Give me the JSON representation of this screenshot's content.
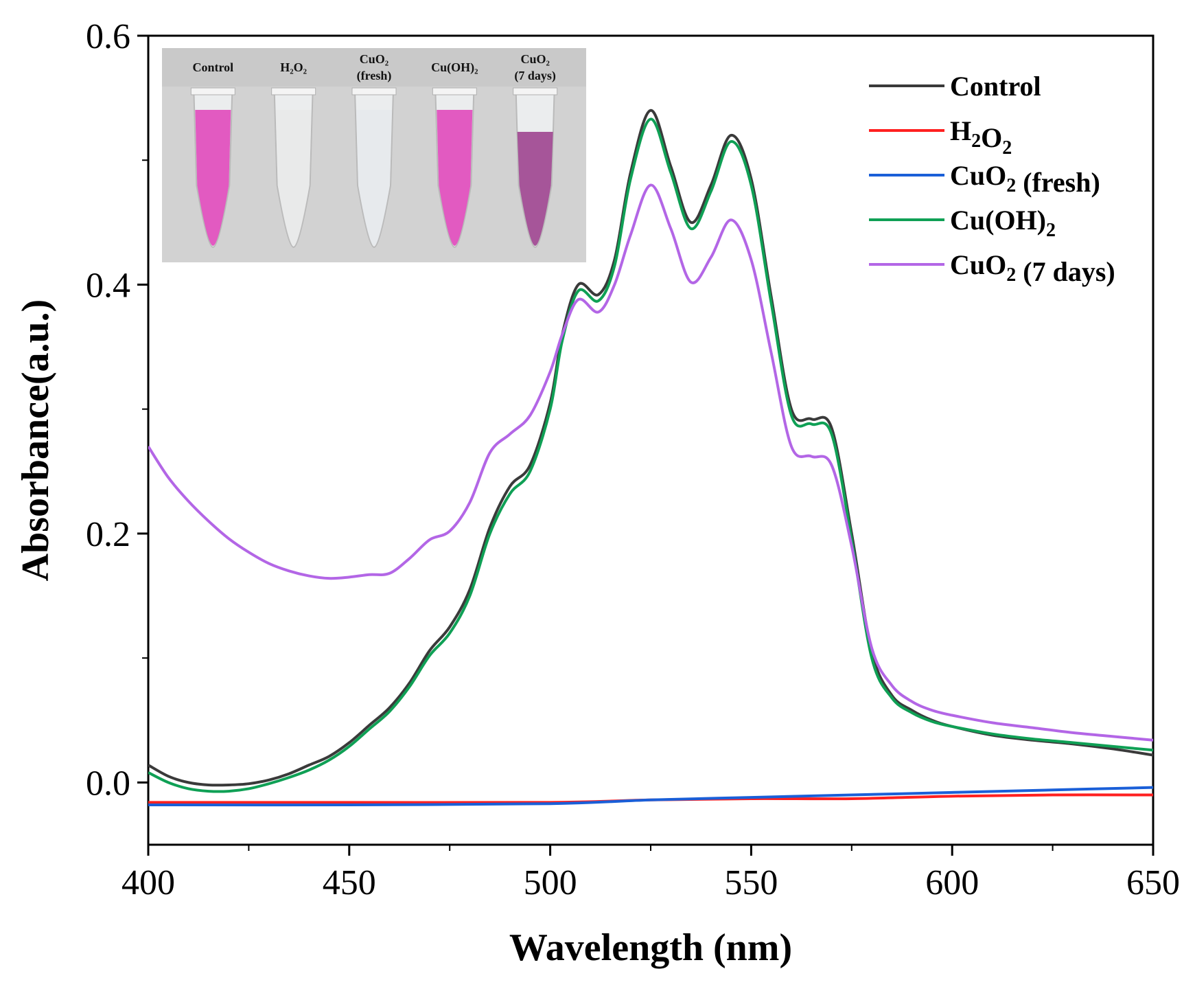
{
  "chart_data": {
    "type": "line",
    "xlabel": "Wavelength (nm)",
    "ylabel": "Absorbance(a.u.)",
    "xlim": [
      400,
      650
    ],
    "ylim": [
      -0.05,
      0.6
    ],
    "x_ticks": [
      "400",
      "450",
      "500",
      "550",
      "600",
      "650"
    ],
    "y_ticks": [
      "0.0",
      "0.2",
      "0.4",
      "0.6"
    ],
    "legend_position": "top-right",
    "series": [
      {
        "name": "Control",
        "color": "#3a3a3a",
        "points": [
          [
            400,
            0.014
          ],
          [
            405,
            0.005
          ],
          [
            410,
            0.0
          ],
          [
            415,
            -0.002
          ],
          [
            420,
            -0.002
          ],
          [
            425,
            -0.001
          ],
          [
            430,
            0.002
          ],
          [
            435,
            0.007
          ],
          [
            440,
            0.014
          ],
          [
            445,
            0.021
          ],
          [
            450,
            0.032
          ],
          [
            455,
            0.046
          ],
          [
            460,
            0.06
          ],
          [
            465,
            0.08
          ],
          [
            470,
            0.106
          ],
          [
            475,
            0.125
          ],
          [
            480,
            0.155
          ],
          [
            485,
            0.205
          ],
          [
            490,
            0.238
          ],
          [
            495,
            0.255
          ],
          [
            500,
            0.305
          ],
          [
            503,
            0.36
          ],
          [
            507,
            0.4
          ],
          [
            512,
            0.392
          ],
          [
            516,
            0.42
          ],
          [
            520,
            0.49
          ],
          [
            525,
            0.54
          ],
          [
            530,
            0.495
          ],
          [
            535,
            0.45
          ],
          [
            540,
            0.48
          ],
          [
            545,
            0.52
          ],
          [
            550,
            0.485
          ],
          [
            555,
            0.39
          ],
          [
            560,
            0.3
          ],
          [
            565,
            0.292
          ],
          [
            570,
            0.285
          ],
          [
            575,
            0.2
          ],
          [
            580,
            0.105
          ],
          [
            585,
            0.07
          ],
          [
            590,
            0.058
          ],
          [
            595,
            0.05
          ],
          [
            600,
            0.045
          ],
          [
            610,
            0.038
          ],
          [
            620,
            0.034
          ],
          [
            630,
            0.031
          ],
          [
            640,
            0.027
          ],
          [
            650,
            0.022
          ]
        ]
      },
      {
        "name": "H2O2",
        "color": "#ff2020",
        "points": [
          [
            400,
            -0.016
          ],
          [
            450,
            -0.016
          ],
          [
            500,
            -0.016
          ],
          [
            525,
            -0.014
          ],
          [
            550,
            -0.013
          ],
          [
            575,
            -0.013
          ],
          [
            600,
            -0.011
          ],
          [
            625,
            -0.01
          ],
          [
            650,
            -0.01
          ]
        ]
      },
      {
        "name": "CuO2 (fresh)",
        "color": "#1a5fd8",
        "points": [
          [
            400,
            -0.018
          ],
          [
            450,
            -0.018
          ],
          [
            500,
            -0.017
          ],
          [
            525,
            -0.014
          ],
          [
            550,
            -0.012
          ],
          [
            575,
            -0.01
          ],
          [
            600,
            -0.008
          ],
          [
            625,
            -0.006
          ],
          [
            650,
            -0.004
          ]
        ]
      },
      {
        "name": "Cu(OH)2",
        "color": "#0fa055",
        "points": [
          [
            400,
            0.008
          ],
          [
            405,
            0.0
          ],
          [
            410,
            -0.005
          ],
          [
            415,
            -0.007
          ],
          [
            420,
            -0.007
          ],
          [
            425,
            -0.005
          ],
          [
            430,
            -0.001
          ],
          [
            435,
            0.004
          ],
          [
            440,
            0.01
          ],
          [
            445,
            0.018
          ],
          [
            450,
            0.029
          ],
          [
            455,
            0.043
          ],
          [
            460,
            0.057
          ],
          [
            465,
            0.077
          ],
          [
            470,
            0.102
          ],
          [
            475,
            0.12
          ],
          [
            480,
            0.15
          ],
          [
            485,
            0.2
          ],
          [
            490,
            0.232
          ],
          [
            495,
            0.25
          ],
          [
            500,
            0.3
          ],
          [
            503,
            0.355
          ],
          [
            507,
            0.395
          ],
          [
            512,
            0.387
          ],
          [
            516,
            0.415
          ],
          [
            520,
            0.485
          ],
          [
            525,
            0.533
          ],
          [
            530,
            0.49
          ],
          [
            535,
            0.445
          ],
          [
            540,
            0.475
          ],
          [
            545,
            0.515
          ],
          [
            550,
            0.48
          ],
          [
            555,
            0.385
          ],
          [
            560,
            0.295
          ],
          [
            565,
            0.288
          ],
          [
            570,
            0.28
          ],
          [
            575,
            0.195
          ],
          [
            580,
            0.1
          ],
          [
            585,
            0.068
          ],
          [
            590,
            0.056
          ],
          [
            595,
            0.049
          ],
          [
            600,
            0.045
          ],
          [
            610,
            0.039
          ],
          [
            620,
            0.035
          ],
          [
            630,
            0.032
          ],
          [
            640,
            0.029
          ],
          [
            650,
            0.026
          ]
        ]
      },
      {
        "name": "CuO2 (7 days)",
        "color": "#b366e6",
        "points": [
          [
            400,
            0.27
          ],
          [
            405,
            0.245
          ],
          [
            410,
            0.226
          ],
          [
            415,
            0.21
          ],
          [
            420,
            0.196
          ],
          [
            425,
            0.185
          ],
          [
            430,
            0.176
          ],
          [
            435,
            0.17
          ],
          [
            440,
            0.166
          ],
          [
            445,
            0.164
          ],
          [
            450,
            0.165
          ],
          [
            455,
            0.167
          ],
          [
            460,
            0.168
          ],
          [
            465,
            0.18
          ],
          [
            470,
            0.195
          ],
          [
            475,
            0.202
          ],
          [
            480,
            0.225
          ],
          [
            485,
            0.265
          ],
          [
            490,
            0.28
          ],
          [
            495,
            0.295
          ],
          [
            500,
            0.33
          ],
          [
            503,
            0.36
          ],
          [
            507,
            0.388
          ],
          [
            512,
            0.378
          ],
          [
            516,
            0.4
          ],
          [
            520,
            0.44
          ],
          [
            525,
            0.48
          ],
          [
            530,
            0.445
          ],
          [
            535,
            0.402
          ],
          [
            540,
            0.422
          ],
          [
            545,
            0.452
          ],
          [
            550,
            0.42
          ],
          [
            555,
            0.345
          ],
          [
            560,
            0.27
          ],
          [
            565,
            0.262
          ],
          [
            570,
            0.255
          ],
          [
            575,
            0.19
          ],
          [
            580,
            0.108
          ],
          [
            585,
            0.078
          ],
          [
            590,
            0.065
          ],
          [
            595,
            0.058
          ],
          [
            600,
            0.054
          ],
          [
            610,
            0.048
          ],
          [
            620,
            0.044
          ],
          [
            630,
            0.04
          ],
          [
            640,
            0.037
          ],
          [
            650,
            0.034
          ]
        ]
      }
    ],
    "legend_labels": [
      {
        "main": "Control",
        "sub": "",
        "tail": ""
      },
      {
        "main": "H",
        "sub": "2",
        "mid": "O",
        "sub2": "2",
        "tail": ""
      },
      {
        "main": "CuO",
        "sub": "2",
        "tail": " (fresh)"
      },
      {
        "main": "Cu(OH)",
        "sub": "2",
        "tail": ""
      },
      {
        "main": "CuO",
        "sub": "2",
        "tail": " (7 days)"
      }
    ]
  },
  "inset": {
    "tube_labels": [
      {
        "line1": "Control",
        "line2": ""
      },
      {
        "line1": "H₂O₂",
        "line2": ""
      },
      {
        "line1": "CuO₂",
        "line2": "(fresh)"
      },
      {
        "line1": "Cu(OH)₂",
        "line2": ""
      },
      {
        "line1": "CuO₂",
        "line2": "(7 days)"
      }
    ],
    "tube_colors": [
      "#e040b8",
      "#e8e8e8",
      "#e4e8ec",
      "#e040b8",
      "#9a3a8a"
    ]
  }
}
